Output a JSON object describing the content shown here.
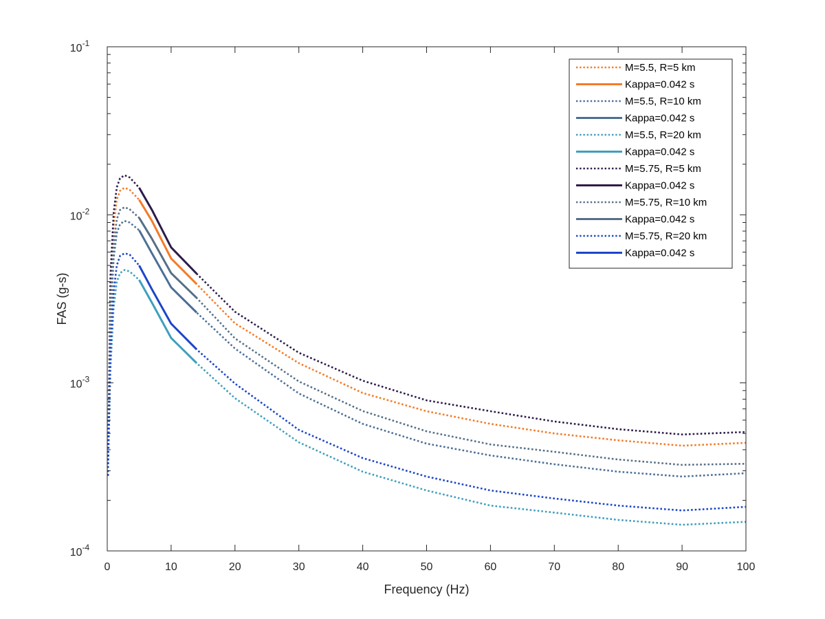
{
  "chart_data": {
    "type": "line",
    "title": "",
    "xlabel": "Frequency (Hz)",
    "ylabel": "FAS (g-s)",
    "xlim": [
      0,
      100
    ],
    "ylim": [
      0.0001,
      0.1
    ],
    "yscale": "log",
    "grid": false,
    "legend_position": "top-right",
    "x_ticks": [
      "0",
      "10",
      "20",
      "30",
      "40",
      "50",
      "60",
      "70",
      "80",
      "90",
      "100"
    ],
    "y_ticks": [
      {
        "base": "10",
        "exp": "-4"
      },
      {
        "base": "10",
        "exp": "-3"
      },
      {
        "base": "10",
        "exp": "-2"
      },
      {
        "base": "10",
        "exp": "-1"
      }
    ],
    "series": [
      {
        "name": "M=5.5, R=5 km",
        "style": "dotted",
        "color": "#f47b27",
        "x": [
          0.1,
          0.5,
          1,
          1.5,
          2,
          2.7,
          3.5,
          5,
          7,
          10,
          14,
          20,
          30,
          40,
          50,
          60,
          70,
          80,
          90,
          100
        ],
        "y": [
          0.00028,
          0.0036,
          0.0087,
          0.0123,
          0.0139,
          0.0145,
          0.0141,
          0.0123,
          0.0092,
          0.0055,
          0.00387,
          0.00226,
          0.00131,
          0.00087,
          0.000678,
          0.00057,
          0.0005,
          0.000455,
          0.000423,
          0.00044
        ]
      },
      {
        "name": "Kappa=0.042 s",
        "style": "solid",
        "color": "#f47b27",
        "x": [
          5,
          7,
          10,
          14
        ],
        "y": [
          0.0123,
          0.0092,
          0.0055,
          0.00387
        ]
      },
      {
        "name": "M=5.5, R=10 km",
        "style": "dotted",
        "color": "#4b6f96",
        "x": [
          0.1,
          0.5,
          1,
          1.5,
          2,
          2.7,
          3.5,
          5,
          7,
          10,
          14,
          20,
          30,
          40,
          50,
          60,
          70,
          80,
          90,
          100
        ],
        "y": [
          0.00028,
          0.0023,
          0.0055,
          0.0078,
          0.0088,
          0.0092,
          0.009,
          0.0081,
          0.0059,
          0.0037,
          0.00262,
          0.0016,
          0.000865,
          0.00057,
          0.000435,
          0.00037,
          0.000328,
          0.000296,
          0.000277,
          0.00029
        ]
      },
      {
        "name": "Kappa=0.042 s",
        "style": "solid",
        "color": "#4b6f96",
        "x": [
          5,
          7,
          10,
          14
        ],
        "y": [
          0.0081,
          0.0059,
          0.0037,
          0.00262
        ]
      },
      {
        "name": "M=5.5, R=20 km",
        "style": "dotted",
        "color": "#3f9fbd",
        "x": [
          0.1,
          0.5,
          1,
          1.5,
          2,
          2.7,
          3.5,
          5,
          7,
          10,
          14,
          20,
          30,
          40,
          50,
          60,
          70,
          80,
          90,
          100
        ],
        "y": [
          0.00028,
          0.0012,
          0.0028,
          0.004,
          0.0045,
          0.0047,
          0.0046,
          0.0041,
          0.003,
          0.00185,
          0.00131,
          0.00081,
          0.000443,
          0.000296,
          0.000229,
          0.000186,
          0.000169,
          0.000153,
          0.000143,
          0.000149
        ]
      },
      {
        "name": "Kappa=0.042 s",
        "style": "solid",
        "color": "#3f9fbd",
        "x": [
          5,
          7,
          10,
          14
        ],
        "y": [
          0.0041,
          0.003,
          0.00185,
          0.00131
        ]
      },
      {
        "name": "M=5.75, R=5 km",
        "style": "dotted",
        "color": "#2c1c4a",
        "x": [
          0.1,
          0.5,
          1,
          1.5,
          2,
          2.7,
          3.5,
          5,
          7,
          10,
          14,
          20,
          30,
          40,
          50,
          60,
          70,
          80,
          90,
          100
        ],
        "y": [
          0.00028,
          0.0043,
          0.0103,
          0.0146,
          0.0165,
          0.0172,
          0.0167,
          0.0145,
          0.0107,
          0.0064,
          0.00446,
          0.00265,
          0.00151,
          0.00103,
          0.000787,
          0.000678,
          0.000589,
          0.00053,
          0.000493,
          0.00051
        ]
      },
      {
        "name": "Kappa=0.042 s",
        "style": "solid",
        "color": "#2c1c4a",
        "x": [
          5,
          7,
          10,
          14
        ],
        "y": [
          0.0145,
          0.0107,
          0.0064,
          0.00446
        ]
      },
      {
        "name": "M=5.75, R=10 km",
        "style": "dotted",
        "color": "#566f86",
        "x": [
          0.1,
          0.5,
          1,
          1.5,
          2,
          2.7,
          3.5,
          5,
          7,
          10,
          14,
          20,
          30,
          40,
          50,
          60,
          70,
          80,
          90,
          100
        ],
        "y": [
          0.00028,
          0.0028,
          0.0067,
          0.0094,
          0.0107,
          0.0111,
          0.0108,
          0.0096,
          0.0072,
          0.0045,
          0.0032,
          0.00184,
          0.00102,
          0.00068,
          0.000515,
          0.00043,
          0.000389,
          0.00035,
          0.000325,
          0.00033
        ]
      },
      {
        "name": "Kappa=0.042 s",
        "style": "solid",
        "color": "#566f86",
        "x": [
          5,
          7,
          10,
          14
        ],
        "y": [
          0.0096,
          0.0072,
          0.0045,
          0.0032
        ]
      },
      {
        "name": "M=5.75, R=20 km",
        "style": "dotted",
        "color": "#1c45c9",
        "x": [
          0.1,
          0.5,
          1,
          1.5,
          2,
          2.7,
          3.5,
          5,
          7,
          10,
          14,
          20,
          30,
          40,
          50,
          60,
          70,
          80,
          90,
          100
        ],
        "y": [
          0.00028,
          0.0015,
          0.0035,
          0.005,
          0.0057,
          0.0059,
          0.0058,
          0.005,
          0.0036,
          0.00225,
          0.00158,
          0.00099,
          0.000525,
          0.000357,
          0.000277,
          0.000229,
          0.000205,
          0.000186,
          0.000174,
          0.000183
        ]
      },
      {
        "name": "Kappa=0.042 s",
        "style": "solid",
        "color": "#1c45c9",
        "x": [
          5,
          7,
          10,
          14
        ],
        "y": [
          0.005,
          0.0036,
          0.00225,
          0.00158
        ]
      }
    ]
  }
}
